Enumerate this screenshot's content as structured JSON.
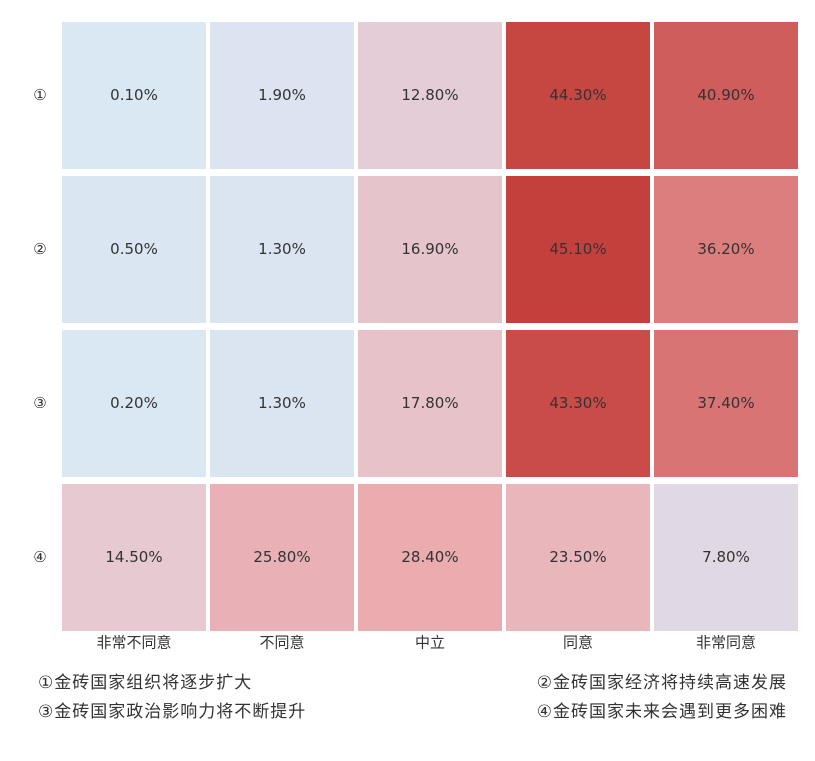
{
  "chart_data": {
    "type": "heatmap",
    "rows": [
      "①",
      "②",
      "③",
      "④"
    ],
    "categories": [
      "非常不同意",
      "不同意",
      "中立",
      "同意",
      "非常同意"
    ],
    "values": [
      [
        0.1,
        1.9,
        12.8,
        44.3,
        40.9
      ],
      [
        0.5,
        1.3,
        16.9,
        45.1,
        36.2
      ],
      [
        0.2,
        1.3,
        17.8,
        43.3,
        37.4
      ],
      [
        14.5,
        25.8,
        28.4,
        23.5,
        7.8
      ]
    ],
    "value_labels": [
      [
        "0.10%",
        "1.90%",
        "12.80%",
        "44.30%",
        "40.90%"
      ],
      [
        "0.50%",
        "1.30%",
        "16.90%",
        "45.10%",
        "36.20%"
      ],
      [
        "0.20%",
        "1.30%",
        "17.80%",
        "43.30%",
        "37.40%"
      ],
      [
        "14.50%",
        "25.80%",
        "28.40%",
        "23.50%",
        "7.80%"
      ]
    ],
    "colorscale": [
      "#dae8f4",
      "#e6c8d0",
      "#eaa8aa",
      "#c4403c"
    ],
    "notes": [
      "①金砖国家组织将逐步扩大",
      "②金砖国家经济将持续高速发展",
      "③金砖国家政治影响力将不断提升",
      "④金砖国家未来会遇到更多困难"
    ]
  }
}
